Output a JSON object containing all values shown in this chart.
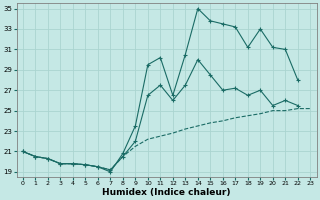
{
  "title": "",
  "xlabel": "Humidex (Indice chaleur)",
  "xlim": [
    -0.5,
    23.5
  ],
  "ylim": [
    18.5,
    35.5
  ],
  "yticks": [
    19,
    21,
    23,
    25,
    27,
    29,
    31,
    33,
    35
  ],
  "xticks": [
    0,
    1,
    2,
    3,
    4,
    5,
    6,
    7,
    8,
    9,
    10,
    11,
    12,
    13,
    14,
    15,
    16,
    17,
    18,
    19,
    20,
    21,
    22,
    23
  ],
  "bg_color": "#c5e8e5",
  "grid_color": "#aad4d0",
  "line_color": "#1a6b65",
  "line_max": [
    21,
    20.5,
    20.3,
    19.8,
    19.8,
    19.7,
    19.5,
    19.0,
    20.8,
    23.5,
    29.5,
    30.2,
    26.5,
    30.5,
    35.0,
    33.8,
    33.5,
    33.2,
    31.2,
    33.0,
    31.2,
    31.0,
    28.0,
    null
  ],
  "line_mid": [
    21,
    20.5,
    20.3,
    19.8,
    19.8,
    19.7,
    19.5,
    19.2,
    20.5,
    22.0,
    26.5,
    27.5,
    26.0,
    27.5,
    30.0,
    28.5,
    27.0,
    27.2,
    26.5,
    27.0,
    25.5,
    26.0,
    25.5,
    null
  ],
  "line_min": [
    21,
    20.5,
    20.3,
    19.8,
    19.8,
    19.7,
    19.5,
    19.2,
    20.5,
    21.5,
    22.2,
    22.5,
    22.8,
    23.2,
    23.5,
    23.8,
    24.0,
    24.3,
    24.5,
    24.7,
    25.0,
    25.0,
    25.2,
    25.2
  ]
}
